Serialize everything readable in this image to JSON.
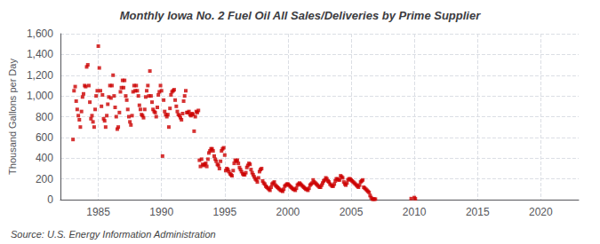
{
  "chart_data": {
    "type": "scatter",
    "title": "Monthly Iowa No. 2 Fuel Oil All Sales/Deliveries by Prime Supplier",
    "ylabel": "Thousand Gallons per Day",
    "source": "Source: U.S. Energy Information Administration",
    "color": "#cc0000",
    "marker": "square",
    "grid": true,
    "xlim": [
      1982,
      2023
    ],
    "ylim": [
      0,
      1600
    ],
    "xticks": [
      1985,
      1990,
      1995,
      2000,
      2005,
      2010,
      2015,
      2020
    ],
    "yticks": [
      0,
      200,
      400,
      600,
      800,
      {
        "value": 1000,
        "label": "1,000"
      },
      {
        "value": 1200,
        "label": "1,200"
      },
      {
        "value": 1400,
        "label": "1,400"
      },
      {
        "value": 1600,
        "label": "1,600"
      }
    ],
    "x": [
      1983.0,
      1983.08,
      1983.17,
      1983.25,
      1983.33,
      1983.42,
      1983.5,
      1983.58,
      1983.67,
      1983.75,
      1983.83,
      1983.92,
      1984.0,
      1984.08,
      1984.17,
      1984.25,
      1984.33,
      1984.42,
      1984.5,
      1984.58,
      1984.67,
      1984.75,
      1984.83,
      1984.92,
      1985.0,
      1985.08,
      1985.17,
      1985.25,
      1985.33,
      1985.42,
      1985.5,
      1985.58,
      1985.67,
      1985.75,
      1985.83,
      1985.92,
      1986.0,
      1986.08,
      1986.17,
      1986.25,
      1986.33,
      1986.42,
      1986.5,
      1986.58,
      1986.67,
      1986.75,
      1986.83,
      1986.92,
      1987.0,
      1987.08,
      1987.17,
      1987.25,
      1987.33,
      1987.42,
      1987.5,
      1987.58,
      1987.67,
      1987.75,
      1987.83,
      1987.92,
      1988.0,
      1988.08,
      1988.17,
      1988.25,
      1988.33,
      1988.42,
      1988.5,
      1988.58,
      1988.67,
      1988.75,
      1988.83,
      1988.92,
      1989.0,
      1989.08,
      1989.17,
      1989.25,
      1989.33,
      1989.42,
      1989.5,
      1989.58,
      1989.67,
      1989.75,
      1989.83,
      1989.92,
      1990.0,
      1990.08,
      1990.17,
      1990.25,
      1990.33,
      1990.42,
      1990.5,
      1990.58,
      1990.67,
      1990.75,
      1990.83,
      1990.92,
      1991.0,
      1991.08,
      1991.17,
      1991.25,
      1991.33,
      1991.42,
      1991.5,
      1991.58,
      1991.67,
      1991.75,
      1991.83,
      1991.92,
      1992.0,
      1992.08,
      1992.17,
      1992.25,
      1992.33,
      1992.42,
      1992.5,
      1992.58,
      1992.67,
      1992.75,
      1992.83,
      1992.92,
      1993.0,
      1993.08,
      1993.17,
      1993.25,
      1993.33,
      1993.42,
      1993.5,
      1993.58,
      1993.67,
      1993.75,
      1993.83,
      1993.92,
      1994.0,
      1994.08,
      1994.17,
      1994.25,
      1994.33,
      1994.42,
      1994.5,
      1994.58,
      1994.67,
      1994.75,
      1994.83,
      1994.92,
      1995.0,
      1995.08,
      1995.17,
      1995.25,
      1995.33,
      1995.42,
      1995.5,
      1995.58,
      1995.67,
      1995.75,
      1995.83,
      1995.92,
      1996.0,
      1996.08,
      1996.17,
      1996.25,
      1996.33,
      1996.42,
      1996.5,
      1996.58,
      1996.67,
      1996.75,
      1996.83,
      1996.92,
      1997.0,
      1997.08,
      1997.17,
      1997.25,
      1997.33,
      1997.42,
      1997.5,
      1997.58,
      1997.67,
      1997.75,
      1997.83,
      1997.92,
      1998.0,
      1998.08,
      1998.17,
      1998.25,
      1998.33,
      1998.42,
      1998.5,
      1998.58,
      1998.67,
      1998.75,
      1998.83,
      1998.92,
      1999.0,
      1999.08,
      1999.17,
      1999.25,
      1999.33,
      1999.42,
      1999.5,
      1999.58,
      1999.67,
      1999.75,
      1999.83,
      1999.92,
      2000.0,
      2000.08,
      2000.17,
      2000.25,
      2000.33,
      2000.42,
      2000.5,
      2000.58,
      2000.67,
      2000.75,
      2000.83,
      2000.92,
      2001.0,
      2001.08,
      2001.17,
      2001.25,
      2001.33,
      2001.42,
      2001.5,
      2001.58,
      2001.67,
      2001.75,
      2001.83,
      2001.92,
      2002.0,
      2002.08,
      2002.17,
      2002.25,
      2002.33,
      2002.42,
      2002.5,
      2002.58,
      2002.67,
      2002.75,
      2002.83,
      2002.92,
      2003.0,
      2003.08,
      2003.17,
      2003.25,
      2003.33,
      2003.42,
      2003.5,
      2003.58,
      2003.67,
      2003.75,
      2003.83,
      2003.92,
      2004.0,
      2004.08,
      2004.17,
      2004.25,
      2004.33,
      2004.42,
      2004.5,
      2004.58,
      2004.67,
      2004.75,
      2004.83,
      2004.92,
      2005.0,
      2005.08,
      2005.17,
      2005.25,
      2005.33,
      2005.42,
      2005.5,
      2005.58,
      2005.67,
      2005.75,
      2005.83,
      2005.92,
      2006.0,
      2006.08,
      2006.17,
      2006.25,
      2006.33,
      2006.42,
      2006.5,
      2006.58,
      2006.67,
      2006.75,
      2006.83,
      2006.92,
      2009.75,
      2010.0,
      2010.08
    ],
    "values": [
      580,
      1050,
      1090,
      950,
      870,
      810,
      770,
      700,
      850,
      990,
      1020,
      1100,
      1090,
      1280,
      1300,
      1100,
      940,
      780,
      810,
      750,
      700,
      870,
      1000,
      1050,
      1480,
      1270,
      1050,
      900,
      1010,
      780,
      760,
      700,
      810,
      920,
      990,
      1100,
      980,
      1100,
      1200,
      1000,
      890,
      800,
      680,
      700,
      840,
      1040,
      1080,
      1150,
      1080,
      1150,
      1000,
      960,
      870,
      800,
      750,
      720,
      810,
      1040,
      1100,
      1050,
      1100,
      1050,
      1000,
      910,
      870,
      820,
      810,
      790,
      870,
      990,
      1050,
      1100,
      1000,
      1240,
      1000,
      940,
      870,
      850,
      840,
      800,
      890,
      1010,
      1040,
      1100,
      1050,
      420,
      960,
      850,
      820,
      800,
      820,
      700,
      880,
      1010,
      1040,
      1050,
      1060,
      960,
      900,
      850,
      820,
      810,
      790,
      770,
      830,
      950,
      1000,
      1050,
      840,
      840,
      850,
      820,
      810,
      830,
      820,
      660,
      800,
      850,
      840,
      860,
      380,
      320,
      390,
      340,
      330,
      340,
      350,
      320,
      390,
      450,
      470,
      490,
      490,
      470,
      420,
      390,
      370,
      340,
      330,
      300,
      370,
      470,
      490,
      500,
      430,
      280,
      300,
      290,
      270,
      250,
      240,
      230,
      280,
      350,
      380,
      370,
      380,
      350,
      310,
      290,
      270,
      250,
      240,
      240,
      260,
      310,
      330,
      350,
      340,
      290,
      260,
      240,
      220,
      200,
      190,
      170,
      210,
      270,
      290,
      300,
      180,
      160,
      150,
      130,
      120,
      110,
      100,
      90,
      120,
      150,
      160,
      170,
      140,
      130,
      120,
      110,
      100,
      90,
      90,
      80,
      100,
      130,
      140,
      150,
      150,
      140,
      130,
      120,
      110,
      100,
      100,
      90,
      110,
      140,
      150,
      160,
      150,
      140,
      130,
      120,
      110,
      100,
      100,
      90,
      110,
      140,
      150,
      160,
      190,
      170,
      160,
      150,
      140,
      130,
      120,
      120,
      140,
      160,
      180,
      190,
      210,
      200,
      180,
      170,
      150,
      140,
      130,
      130,
      150,
      180,
      200,
      200,
      190,
      190,
      230,
      220,
      210,
      170,
      150,
      140,
      160,
      190,
      200,
      200,
      190,
      180,
      170,
      160,
      150,
      140,
      130,
      120,
      140,
      170,
      180,
      190,
      120,
      110,
      100,
      90,
      80,
      70,
      40,
      20,
      5,
      5,
      5,
      5,
      10,
      20,
      8
    ]
  }
}
